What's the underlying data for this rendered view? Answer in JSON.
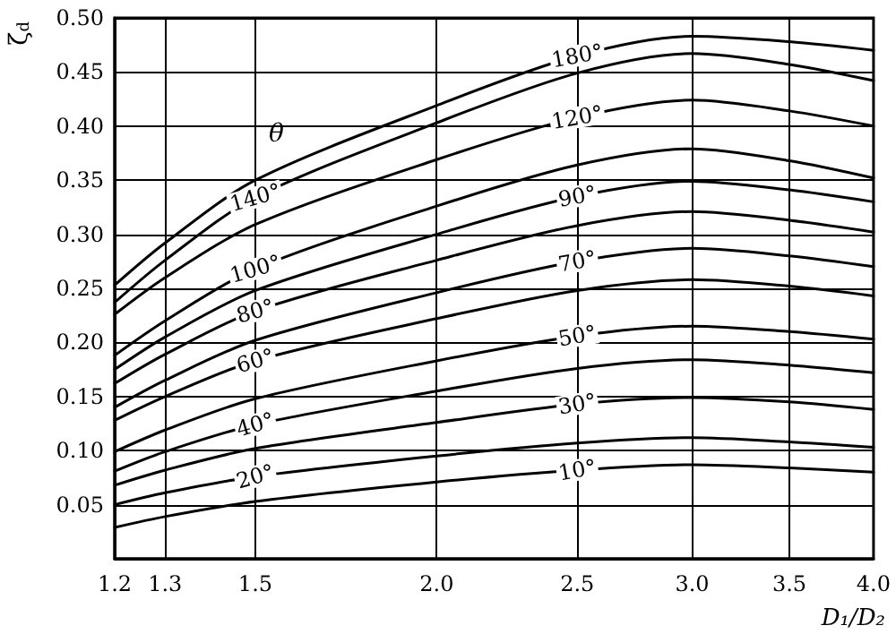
{
  "chart_data": {
    "type": "line",
    "xlabel": "D₁/D₂",
    "ylabel": "ζ$_{d}$",
    "log": "x",
    "grid": true,
    "legend": false,
    "marker": "none",
    "line_style": "solid",
    "annotations": [
      "θ"
    ],
    "x": [
      1.2,
      1.3,
      1.5,
      2.0,
      2.5,
      3.0,
      3.5,
      4.0
    ],
    "xlim": [
      1.2,
      4.0
    ],
    "xticks": [
      1.2,
      1.3,
      1.5,
      {
        "value": 2,
        "label": "2.0"
      },
      2.5,
      {
        "value": 3,
        "label": "3.0"
      },
      3.5,
      {
        "value": 4,
        "label": "4.0"
      }
    ],
    "ylim": [
      0,
      0.5
    ],
    "yticks": [
      {
        "value": 0,
        "label": null
      },
      {
        "value": 0.05,
        "label": "0.05"
      },
      {
        "value": 0.1,
        "label": "0.10"
      },
      {
        "value": 0.15,
        "label": "0.15"
      },
      {
        "value": 0.2,
        "label": "0.20"
      },
      {
        "value": 0.25,
        "label": "0.25"
      },
      {
        "value": 0.3,
        "label": "0.30"
      },
      {
        "value": 0.35,
        "label": "0.35"
      },
      {
        "value": 0.4,
        "label": "0.40"
      },
      {
        "value": 0.45,
        "label": "0.45"
      },
      {
        "value": 0.5,
        "label": "0.50"
      }
    ],
    "series": [
      {
        "name": "180°",
        "color": "#000000",
        "values": [
          0.253,
          0.292,
          0.35,
          0.419,
          0.465,
          0.483,
          0.478,
          0.47
        ]
      },
      {
        "name": "140°",
        "color": "#000000",
        "values": [
          0.237,
          0.276,
          0.334,
          0.403,
          0.449,
          0.467,
          0.457,
          0.442
        ]
      },
      {
        "name": "120°",
        "color": "#000000",
        "values": [
          0.226,
          0.26,
          0.309,
          0.369,
          0.408,
          0.424,
          0.414,
          0.4
        ]
      },
      {
        "name": "100°",
        "color": "#000000",
        "values": [
          0.188,
          0.22,
          0.268,
          0.326,
          0.364,
          0.379,
          0.368,
          0.352
        ]
      },
      {
        "name": "90°",
        "color": "#000000",
        "values": [
          0.175,
          0.205,
          0.248,
          0.3,
          0.335,
          0.349,
          0.341,
          0.33
        ]
      },
      {
        "name": "80°",
        "color": "#000000",
        "values": [
          0.162,
          0.189,
          0.229,
          0.276,
          0.308,
          0.321,
          0.313,
          0.302
        ]
      },
      {
        "name": "70°",
        "color": "#000000",
        "values": [
          0.14,
          0.165,
          0.202,
          0.246,
          0.275,
          0.287,
          0.28,
          0.27
        ]
      },
      {
        "name": "60°",
        "color": "#000000",
        "values": [
          0.128,
          0.15,
          0.183,
          0.222,
          0.248,
          0.258,
          0.252,
          0.243
        ]
      },
      {
        "name": "50°",
        "color": "#000000",
        "values": [
          0.099,
          0.119,
          0.148,
          0.183,
          0.206,
          0.215,
          0.21,
          0.203
        ]
      },
      {
        "name": "40°",
        "color": "#000000",
        "values": [
          0.081,
          0.099,
          0.124,
          0.155,
          0.176,
          0.184,
          0.179,
          0.172
        ]
      },
      {
        "name": "30°",
        "color": "#000000",
        "values": [
          0.068,
          0.082,
          0.102,
          0.126,
          0.143,
          0.149,
          0.145,
          0.138
        ]
      },
      {
        "name": "20°",
        "color": "#000000",
        "values": [
          0.05,
          0.061,
          0.076,
          0.095,
          0.107,
          0.112,
          0.108,
          0.103
        ]
      },
      {
        "name": "10°",
        "color": "#000000",
        "values": [
          0.029,
          0.039,
          0.053,
          0.071,
          0.082,
          0.087,
          0.084,
          0.08
        ]
      }
    ]
  }
}
